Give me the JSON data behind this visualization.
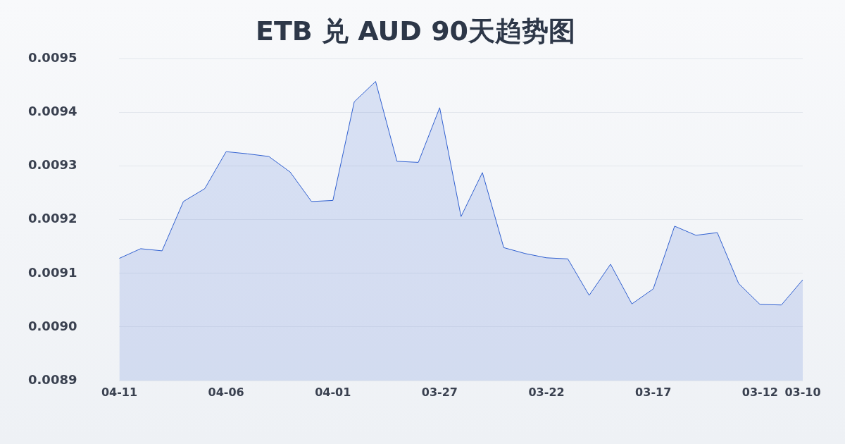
{
  "chart_data": {
    "type": "area",
    "title": "ETB 兑 AUD 90天趋势图",
    "categories": [
      "04-11",
      null,
      null,
      null,
      null,
      "04-06",
      null,
      null,
      null,
      null,
      "04-01",
      null,
      null,
      null,
      null,
      "03-27",
      null,
      null,
      null,
      null,
      "03-22",
      null,
      null,
      null,
      null,
      "03-17",
      null,
      null,
      null,
      null,
      "03-12",
      null,
      "03-10"
    ],
    "series": [
      {
        "color": "#2f5fd0",
        "values": [
          0.009128,
          0.009146,
          0.009142,
          0.009234,
          0.009258,
          0.009327,
          0.009323,
          0.009318,
          0.009289,
          0.009234,
          0.009236,
          0.00942,
          0.009458,
          0.009309,
          0.009307,
          0.009409,
          0.009206,
          0.009288,
          0.009148,
          0.009137,
          0.009129,
          0.009127,
          0.009059,
          0.009117,
          0.009043,
          0.009071,
          0.009188,
          0.009171,
          0.009176,
          0.009081,
          0.009042,
          0.009041,
          0.009088
        ]
      }
    ],
    "ylim": [
      0.0089,
      0.0095
    ],
    "yticks": [
      0.0089,
      {
        "value": 0.009,
        "label": "0.0090"
      },
      0.0091,
      0.0092,
      0.0093,
      0.0094,
      0.0095
    ],
    "grid": "y",
    "legend": false,
    "marker": "none",
    "line_style": "solid"
  }
}
